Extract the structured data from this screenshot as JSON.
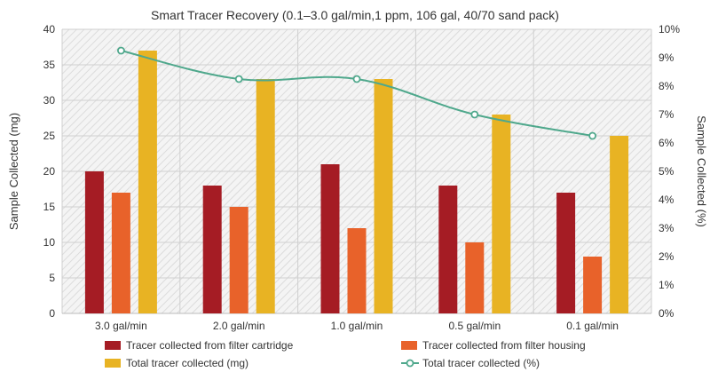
{
  "chart_data": {
    "type": "bar",
    "title": "Smart Tracer Recovery (0.1–3.0 gal/min,1 ppm, 106 gal, 40/70 sand pack)",
    "ylabel": "Sample Collected (mg)",
    "y2label": "Sample Collected (%)",
    "categories": [
      "3.0 gal/min",
      "2.0 gal/min",
      "1.0 gal/min",
      "0.5 gal/min",
      "0.1 gal/min"
    ],
    "ylim": [
      0,
      40
    ],
    "y2lim": [
      0,
      10
    ],
    "yticks": [
      "0",
      "5",
      "10",
      "15",
      "20",
      "25",
      "30",
      "35",
      "40"
    ],
    "y2ticks": [
      "0%",
      "1%",
      "2%",
      "3%",
      "4%",
      "5%",
      "6%",
      "7%",
      "8%",
      "9%",
      "10%"
    ],
    "grid": true,
    "legend_position": "bottom",
    "series": [
      {
        "name": "Tracer collected from filter cartridge",
        "type": "bar",
        "axis": "left",
        "color": "#a51c24",
        "values": [
          20,
          18,
          21,
          18,
          17
        ]
      },
      {
        "name": "Tracer collected from filter housing",
        "type": "bar",
        "axis": "left",
        "color": "#e8622a",
        "values": [
          17,
          15,
          12,
          10,
          8
        ]
      },
      {
        "name": "Total tracer collected (mg)",
        "type": "bar",
        "axis": "left",
        "color": "#e8b323",
        "values": [
          37,
          33,
          33,
          28,
          25
        ]
      },
      {
        "name": "Total tracer collected (%)",
        "type": "line",
        "axis": "right",
        "color": "#4fa88c",
        "values": [
          9.25,
          8.25,
          8.25,
          7.0,
          6.25
        ]
      }
    ]
  }
}
